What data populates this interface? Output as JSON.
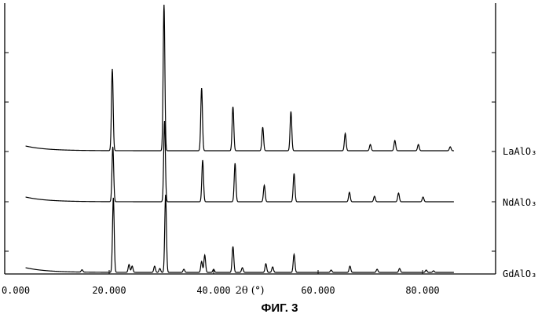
{
  "chart_data": {
    "type": "line",
    "title": "",
    "xlabel": "2θ (°)",
    "ylabel": "",
    "caption": "ФИГ. 3",
    "xlim": [
      0,
      95
    ],
    "x_ticks": [
      0,
      20,
      40,
      60,
      80
    ],
    "x_tick_labels": [
      "0.000",
      "20.000",
      "40.000",
      "60.000",
      "80.000"
    ],
    "grid": false,
    "stroke_color": "#000000",
    "series": [
      {
        "name": "LaAlO₃",
        "x_start": 4,
        "x_end": 86,
        "peaks": [
          {
            "x": 20.6,
            "h": 104
          },
          {
            "x": 30.5,
            "h": 186
          },
          {
            "x": 37.7,
            "h": 80
          },
          {
            "x": 43.7,
            "h": 56
          },
          {
            "x": 49.4,
            "h": 30
          },
          {
            "x": 54.8,
            "h": 50
          },
          {
            "x": 65.2,
            "h": 22
          },
          {
            "x": 70.0,
            "h": 8
          },
          {
            "x": 74.7,
            "h": 13
          },
          {
            "x": 79.2,
            "h": 8
          },
          {
            "x": 85.3,
            "h": 5
          }
        ]
      },
      {
        "name": "NdAlO₃",
        "x_start": 4,
        "x_end": 86,
        "peaks": [
          {
            "x": 20.7,
            "h": 70
          },
          {
            "x": 30.6,
            "h": 103
          },
          {
            "x": 37.9,
            "h": 53
          },
          {
            "x": 44.1,
            "h": 49
          },
          {
            "x": 49.7,
            "h": 21
          },
          {
            "x": 55.4,
            "h": 36
          },
          {
            "x": 66.0,
            "h": 12
          },
          {
            "x": 70.8,
            "h": 7
          },
          {
            "x": 75.4,
            "h": 11
          },
          {
            "x": 80.1,
            "h": 6
          }
        ]
      },
      {
        "name": "GdAlO₃",
        "x_start": 4,
        "x_end": 86,
        "peaks": [
          {
            "x": 14.8,
            "h": 3
          },
          {
            "x": 20.8,
            "h": 95
          },
          {
            "x": 23.8,
            "h": 10
          },
          {
            "x": 24.4,
            "h": 8
          },
          {
            "x": 28.7,
            "h": 8
          },
          {
            "x": 29.7,
            "h": 5
          },
          {
            "x": 30.8,
            "h": 99
          },
          {
            "x": 34.3,
            "h": 4
          },
          {
            "x": 37.7,
            "h": 14
          },
          {
            "x": 38.3,
            "h": 22
          },
          {
            "x": 40.0,
            "h": 4
          },
          {
            "x": 43.7,
            "h": 33
          },
          {
            "x": 45.5,
            "h": 6
          },
          {
            "x": 50.0,
            "h": 11
          },
          {
            "x": 51.3,
            "h": 7
          },
          {
            "x": 55.4,
            "h": 23
          },
          {
            "x": 62.5,
            "h": 3
          },
          {
            "x": 66.1,
            "h": 8
          },
          {
            "x": 71.3,
            "h": 4
          },
          {
            "x": 75.6,
            "h": 5
          },
          {
            "x": 80.7,
            "h": 3
          },
          {
            "x": 82.1,
            "h": 2
          }
        ]
      }
    ]
  }
}
